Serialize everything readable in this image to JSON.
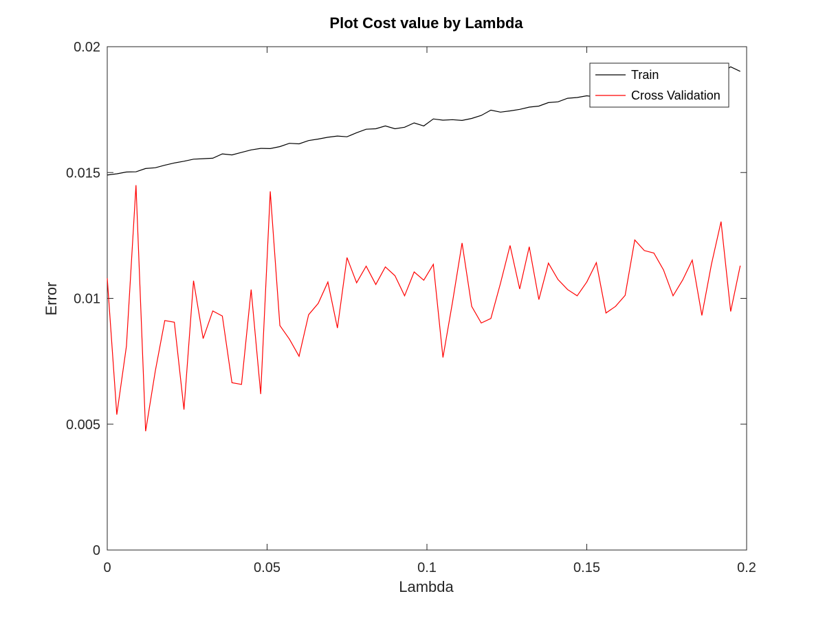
{
  "chart_data": {
    "type": "line",
    "title": "Plot Cost value by Lambda",
    "xlabel": "Lambda",
    "ylabel": "Error",
    "xlim": [
      0,
      0.2
    ],
    "ylim": [
      0,
      0.02
    ],
    "xticks": [
      0,
      0.05,
      0.1,
      0.15,
      0.2
    ],
    "xtick_labels": [
      "0",
      "0.05",
      "0.1",
      "0.15",
      "0.2"
    ],
    "yticks": [
      0,
      0.005,
      0.01,
      0.015,
      0.02
    ],
    "ytick_labels": [
      "0",
      "0.005",
      "0.01",
      "0.015",
      "0.02"
    ],
    "grid": false,
    "legend_position": "top-right",
    "x": [
      0,
      0.003,
      0.006,
      0.009,
      0.012,
      0.015,
      0.018,
      0.021,
      0.024,
      0.027,
      0.03,
      0.033,
      0.036,
      0.039,
      0.042,
      0.045,
      0.048,
      0.051,
      0.054,
      0.057,
      0.06,
      0.063,
      0.066,
      0.069,
      0.072,
      0.075,
      0.078,
      0.081,
      0.084,
      0.087,
      0.09,
      0.093,
      0.096,
      0.099,
      0.102,
      0.105,
      0.108,
      0.111,
      0.114,
      0.117,
      0.12,
      0.123,
      0.126,
      0.129,
      0.132,
      0.135,
      0.138,
      0.141,
      0.144,
      0.147,
      0.15,
      0.153,
      0.156,
      0.159,
      0.162,
      0.165,
      0.168,
      0.171,
      0.174,
      0.177,
      0.18,
      0.183,
      0.186,
      0.189,
      0.192,
      0.195,
      0.198
    ],
    "series": [
      {
        "name": "Train",
        "color": "#000000",
        "values": [
          0.0149,
          0.01495,
          0.01502,
          0.01503,
          0.01516,
          0.01519,
          0.01529,
          0.01538,
          0.01545,
          0.01553,
          0.01555,
          0.01557,
          0.01574,
          0.0157,
          0.0158,
          0.0159,
          0.01596,
          0.01595,
          0.01603,
          0.01616,
          0.01614,
          0.01627,
          0.01633,
          0.0164,
          0.01645,
          0.01642,
          0.01658,
          0.01672,
          0.01674,
          0.01685,
          0.01674,
          0.0168,
          0.01697,
          0.01685,
          0.01713,
          0.01708,
          0.0171,
          0.01707,
          0.01715,
          0.01727,
          0.01748,
          0.0174,
          0.01745,
          0.01751,
          0.0176,
          0.01764,
          0.01778,
          0.01781,
          0.01795,
          0.01798,
          0.01805,
          0.018,
          0.0183,
          0.01835,
          0.0184,
          0.0185,
          0.01855,
          0.0186,
          0.01865,
          0.0187,
          0.01875,
          0.0188,
          0.01885,
          0.0189,
          0.01895,
          0.0192,
          0.01902
        ]
      },
      {
        "name": "Cross Validation",
        "color": "#ff0000",
        "values": [
          0.0108,
          0.00538,
          0.0081,
          0.0145,
          0.00472,
          0.0071,
          0.00912,
          0.00905,
          0.00558,
          0.0107,
          0.0084,
          0.0095,
          0.0093,
          0.00665,
          0.00658,
          0.01035,
          0.0062,
          0.01425,
          0.00892,
          0.00838,
          0.0077,
          0.00935,
          0.0098,
          0.01065,
          0.00882,
          0.01162,
          0.01062,
          0.01128,
          0.01055,
          0.01125,
          0.0109,
          0.0101,
          0.01105,
          0.01072,
          0.01135,
          0.00765,
          0.00985,
          0.0122,
          0.00968,
          0.00902,
          0.0092,
          0.0106,
          0.0121,
          0.01037,
          0.01205,
          0.00995,
          0.0114,
          0.01075,
          0.01035,
          0.0101,
          0.01065,
          0.01142,
          0.00942,
          0.00968,
          0.01012,
          0.01232,
          0.0119,
          0.0118,
          0.01113,
          0.0101,
          0.01073,
          0.01152,
          0.00932,
          0.01135,
          0.01305,
          0.00948,
          0.0113
        ]
      }
    ]
  }
}
